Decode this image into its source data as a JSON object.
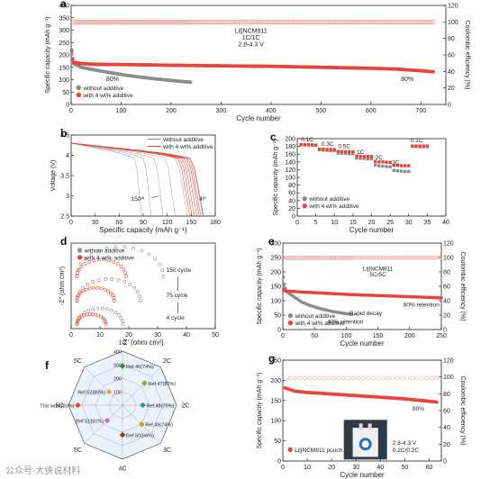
{
  "colors": {
    "red": "#e8443a",
    "red_light": "#f5a3a0",
    "gray": "#8c8c8c",
    "gray_light": "#c8c8c8",
    "axis": "#222222"
  },
  "watermark": "公众号·大侠说材料",
  "chart_data": [
    {
      "id": "a",
      "type": "scatter",
      "panel_label": "a",
      "xlabel": "Cycle number",
      "ylabel": "Specific capacity (mAh g⁻¹)",
      "y2label": "Coulombic efficiency (%)",
      "xlim": [
        0,
        750
      ],
      "ylim": [
        0,
        400
      ],
      "y2lim": [
        0,
        120
      ],
      "xticks": [
        0,
        100,
        200,
        300,
        400,
        500,
        600,
        700
      ],
      "yticks": [
        0,
        50,
        100,
        150,
        200,
        250,
        300,
        350,
        400
      ],
      "y2ticks": [
        0,
        20,
        40,
        60,
        80,
        100,
        120
      ],
      "legend": [
        "without additive",
        "with 4 wt% additive"
      ],
      "annotations": [
        "Li||NCM811",
        "1C/1C",
        "2.8-4.3 V",
        "80%",
        "80%"
      ],
      "series": [
        {
          "name": "without additive",
          "kind": "capacity",
          "x": [
            1,
            3,
            5,
            20,
            50,
            80,
            110,
            140,
            170,
            200,
            220,
            240
          ],
          "y": [
            210,
            180,
            165,
            150,
            138,
            128,
            118,
            110,
            103,
            97,
            93,
            90
          ]
        },
        {
          "name": "with 4 wt% additive",
          "kind": "capacity",
          "x": [
            1,
            3,
            5,
            20,
            50,
            100,
            150,
            200,
            250,
            300,
            350,
            400,
            450,
            500,
            550,
            600,
            650,
            700,
            725
          ],
          "y": [
            220,
            185,
            170,
            165,
            162,
            161,
            160,
            158,
            157,
            156,
            155,
            154,
            152,
            150,
            148,
            146,
            143,
            136,
            132
          ]
        },
        {
          "name": "without additive",
          "kind": "efficiency",
          "x": [
            5,
            240
          ],
          "y": [
            99.5,
            99.5
          ]
        },
        {
          "name": "with 4 wt% additive",
          "kind": "efficiency",
          "x": [
            5,
            725
          ],
          "y": [
            99.8,
            99.8
          ]
        }
      ]
    },
    {
      "id": "b",
      "type": "line",
      "panel_label": "b",
      "xlabel": "Specific capacity (mAh g⁻¹)",
      "ylabel": "Voltage (V)",
      "xlim": [
        0,
        180
      ],
      "ylim": [
        2.5,
        4.5
      ],
      "xticks": [
        0,
        30,
        60,
        90,
        120,
        150,
        180
      ],
      "yticks": [
        2.5,
        3.0,
        3.5,
        4.0,
        4.5
      ],
      "legend": [
        "without additive",
        "with 4 wt% additive"
      ],
      "annotations": [
        "150ᵗʰ",
        "4ᵗʰ"
      ],
      "series": [
        {
          "name": "without additive",
          "cycles": [
            4,
            30,
            60,
            90,
            120,
            150
          ],
          "capacity_end": [
            162,
            145,
            130,
            115,
            100,
            88
          ]
        },
        {
          "name": "with 4 wt% additive",
          "cycles": [
            4,
            30,
            60,
            90,
            120,
            150
          ],
          "capacity_end": [
            165,
            160,
            157,
            154,
            151,
            148
          ]
        }
      ]
    },
    {
      "id": "c",
      "type": "scatter",
      "panel_label": "c",
      "xlabel": "Cycle number",
      "ylabel": "Specific capacity (mAh g⁻¹)",
      "xlim": [
        0,
        40
      ],
      "ylim": [
        0,
        200
      ],
      "xticks": [
        0,
        5,
        10,
        15,
        20,
        25,
        30,
        35,
        40
      ],
      "yticks": [
        0,
        20,
        40,
        60,
        80,
        100,
        120,
        140,
        160,
        180,
        200
      ],
      "legend": [
        "without additive",
        "with 4 wt% additive"
      ],
      "rate_labels": [
        "0.1C",
        "0.3C",
        "0.5C",
        "1C",
        "2C",
        "3C",
        "0.1C"
      ],
      "series": [
        {
          "name": "without additive",
          "x": [
            1,
            2,
            3,
            4,
            5,
            6,
            7,
            8,
            9,
            10,
            11,
            12,
            13,
            14,
            15,
            16,
            17,
            18,
            19,
            20,
            21,
            22,
            23,
            24,
            25,
            26,
            27,
            28,
            29,
            30,
            31,
            32,
            33,
            34,
            35
          ],
          "y": [
            185,
            184,
            184,
            183,
            183,
            171,
            170,
            170,
            169,
            169,
            163,
            162,
            162,
            161,
            161,
            150,
            149,
            149,
            148,
            148,
            132,
            130,
            129,
            128,
            127,
            118,
            117,
            116,
            115,
            115,
            180,
            180,
            179,
            179,
            179
          ]
        },
        {
          "name": "with 4 wt% additive",
          "x": [
            1,
            2,
            3,
            4,
            5,
            6,
            7,
            8,
            9,
            10,
            11,
            12,
            13,
            14,
            15,
            16,
            17,
            18,
            19,
            20,
            21,
            22,
            23,
            24,
            25,
            26,
            27,
            28,
            29,
            30,
            31,
            32,
            33,
            34,
            35
          ],
          "y": [
            184,
            184,
            184,
            184,
            183,
            173,
            173,
            172,
            172,
            172,
            167,
            167,
            166,
            166,
            166,
            155,
            155,
            154,
            154,
            154,
            141,
            140,
            140,
            139,
            139,
            131,
            131,
            130,
            130,
            130,
            181,
            181,
            181,
            181,
            181
          ]
        }
      ]
    },
    {
      "id": "d",
      "type": "line",
      "panel_label": "d",
      "xlabel": "Z' (ohm cm²)",
      "ylabel": "-Z'' (ohm cm²)",
      "xlim": [
        0,
        50
      ],
      "xticks": [
        0,
        10,
        20,
        30,
        40,
        50
      ],
      "legend": [
        "without additive",
        "with 4 wt% additive"
      ],
      "annotations": [
        "150 cycle",
        "75 cycle",
        "4 cycle"
      ],
      "series": [
        {
          "name": "without additive",
          "cycles": [
            4,
            75,
            150
          ],
          "arc_end": [
            18,
            24,
            32
          ]
        },
        {
          "name": "with 4 wt% additive",
          "cycles": [
            4,
            75,
            150
          ],
          "arc_end": [
            12,
            15,
            19
          ]
        }
      ]
    },
    {
      "id": "e",
      "type": "scatter",
      "panel_label": "e",
      "xlabel": "Cycle number",
      "ylabel": "Specific capacity (mAh g⁻¹)",
      "y2label": "Coulombic efficiency (%)",
      "xlim": [
        0,
        250
      ],
      "ylim": [
        0,
        300
      ],
      "y2lim": [
        0,
        120
      ],
      "xticks": [
        0,
        50,
        100,
        150,
        200,
        250
      ],
      "yticks": [
        0,
        50,
        100,
        150,
        200,
        250,
        300
      ],
      "y2ticks": [
        0,
        20,
        40,
        60,
        80,
        100,
        120
      ],
      "legend": [
        "without additive",
        "with 4 wt% additive"
      ],
      "annotations": [
        "Li||NCM811",
        "5C/5C",
        "80% retention",
        "Rapid decay",
        "40% retention"
      ],
      "series": [
        {
          "name": "without additive",
          "kind": "capacity",
          "x": [
            1,
            3,
            5,
            10,
            20,
            30,
            45,
            60,
            80,
            100,
            110
          ],
          "y": [
            182,
            150,
            135,
            125,
            110,
            95,
            82,
            72,
            62,
            55,
            52
          ]
        },
        {
          "name": "with 4 wt% additive",
          "kind": "capacity",
          "x": [
            1,
            3,
            5,
            10,
            30,
            60,
            100,
            150,
            200,
            250
          ],
          "y": [
            140,
            135,
            133,
            133,
            130,
            127,
            122,
            118,
            114,
            110
          ]
        },
        {
          "name": "without additive",
          "kind": "efficiency",
          "x": [
            3,
            110
          ],
          "y": [
            99.2,
            99.2
          ]
        },
        {
          "name": "with 4 wt% additive",
          "kind": "efficiency",
          "x": [
            3,
            250
          ],
          "y": [
            99.6,
            99.6
          ]
        }
      ]
    },
    {
      "id": "f",
      "type": "radar",
      "panel_label": "f",
      "axes": [
        "1C",
        "2C",
        "2C",
        "3C",
        "4C",
        "5C",
        "5C",
        "5C"
      ],
      "radial_ticks": [
        100,
        200,
        300,
        400
      ],
      "points": [
        {
          "label": "Ref.46(74%)",
          "value": 290,
          "axis": 0,
          "color": "#2c8a3e"
        },
        {
          "label": "Ref.47(80%)",
          "value": 230,
          "axis": 1,
          "color": "#7bb13a"
        },
        {
          "label": "Ref.48(75%)",
          "value": 150,
          "axis": 2,
          "color": "#2b8fc4"
        },
        {
          "label": "Ref.49(74%)",
          "value": 200,
          "axis": 3,
          "color": "#d4a017"
        },
        {
          "label": "Ref.50(66%)",
          "value": 220,
          "axis": 4,
          "color": "#8b4513"
        },
        {
          "label": "Ref.51(81%)",
          "value": 160,
          "axis": 5,
          "color": "#d26ad2"
        },
        {
          "label": "This work(80%)",
          "value": 330,
          "axis": 6,
          "color": "#e8443a"
        },
        {
          "label": "Ref.52(80%)",
          "value": 140,
          "axis": 7,
          "color": "#f0a050"
        }
      ]
    },
    {
      "id": "g",
      "type": "scatter",
      "panel_label": "g",
      "xlabel": "Cycle number",
      "ylabel": "Specific capacity (mAh g⁻¹)",
      "y2label": "Coulombic efficiency (%)",
      "xlim": [
        0,
        65
      ],
      "ylim": [
        0,
        250
      ],
      "y2lim": [
        0,
        120
      ],
      "xticks": [
        0,
        10,
        20,
        30,
        40,
        50,
        60
      ],
      "yticks": [
        0,
        50,
        100,
        150,
        200,
        250
      ],
      "y2ticks": [
        0,
        20,
        40,
        60,
        80,
        100,
        120
      ],
      "legend": [
        "Li||NCM811 pouch cell"
      ],
      "annotations": [
        "2.8-4.3 V",
        "0.2C/0.2C",
        "80%"
      ],
      "series": [
        {
          "name": "Li||NCM811 pouch cell",
          "kind": "capacity",
          "x": [
            1,
            5,
            10,
            15,
            20,
            25,
            30,
            35,
            40,
            45,
            50,
            55,
            60,
            63
          ],
          "y": [
            181,
            173,
            170,
            168,
            166,
            164,
            162,
            160,
            158,
            156,
            154,
            151,
            148,
            146
          ]
        },
        {
          "name": "Li||NCM811 pouch cell",
          "kind": "efficiency",
          "x": [
            3,
            63
          ],
          "y": [
            98.5,
            98.5
          ]
        }
      ]
    }
  ]
}
